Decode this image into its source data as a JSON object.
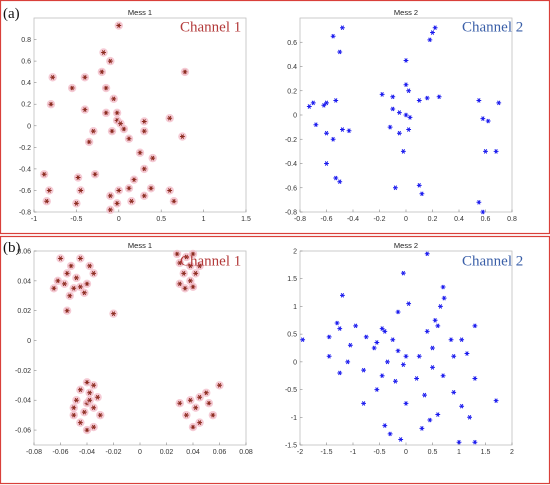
{
  "figure": {
    "row_labels": [
      "(a)",
      "(b)"
    ],
    "frame_color": "#d9403a"
  },
  "chart_data": [
    {
      "id": "a1",
      "type": "scatter",
      "title": "Mess 1",
      "channel_label": "Channel 1",
      "channel_color": "#b33a3a",
      "marker_color": "#8b2a1e",
      "halo_color": "#f2b8c6",
      "xlim": [
        -1,
        1.5
      ],
      "ylim": [
        -0.8,
        1
      ],
      "xticks": [
        -1,
        -0.5,
        0,
        0.5,
        1,
        1.5
      ],
      "xtick_labels": [
        "-1",
        "-0.5",
        "0",
        "0.5",
        "1",
        "1.5"
      ],
      "yticks": [
        -0.8,
        -0.6,
        -0.4,
        -0.2,
        0,
        0.2,
        0.4,
        0.6,
        0.8
      ],
      "ytick_labels": [
        "-0.8",
        "-0.6",
        "-0.4",
        "-0.2",
        "0",
        "0.2",
        "0.4",
        "0.6",
        "0.8"
      ],
      "points": [
        [
          0,
          0.93
        ],
        [
          -0.18,
          0.68
        ],
        [
          -0.1,
          0.6
        ],
        [
          -0.4,
          0.45
        ],
        [
          -0.2,
          0.5
        ],
        [
          0.78,
          0.5
        ],
        [
          -0.78,
          0.45
        ],
        [
          -0.55,
          0.35
        ],
        [
          -0.15,
          0.35
        ],
        [
          -0.06,
          0.25
        ],
        [
          -0.8,
          0.2
        ],
        [
          -0.4,
          0.15
        ],
        [
          -0.15,
          0.12
        ],
        [
          -0.02,
          0.05
        ],
        [
          0.02,
          0.02
        ],
        [
          0.06,
          -0.03
        ],
        [
          -0.08,
          -0.05
        ],
        [
          -0.3,
          -0.05
        ],
        [
          -0.02,
          0.12
        ],
        [
          0.6,
          0.07
        ],
        [
          0.3,
          0.04
        ],
        [
          0.3,
          -0.05
        ],
        [
          -0.35,
          -0.15
        ],
        [
          0.12,
          -0.12
        ],
        [
          0.25,
          -0.25
        ],
        [
          0.4,
          -0.3
        ],
        [
          0.75,
          -0.1
        ],
        [
          0.3,
          -0.4
        ],
        [
          -0.88,
          -0.45
        ],
        [
          -0.28,
          -0.45
        ],
        [
          -0.48,
          -0.48
        ],
        [
          0.18,
          -0.5
        ],
        [
          -0.82,
          -0.6
        ],
        [
          -0.45,
          -0.6
        ],
        [
          0.12,
          -0.58
        ],
        [
          0.38,
          -0.58
        ],
        [
          0.0,
          -0.6
        ],
        [
          0.6,
          -0.6
        ],
        [
          -0.1,
          -0.65
        ],
        [
          -0.85,
          -0.7
        ],
        [
          0.15,
          -0.7
        ],
        [
          0.65,
          -0.7
        ],
        [
          -0.5,
          -0.72
        ],
        [
          -0.1,
          -0.78
        ],
        [
          0.3,
          -0.65
        ],
        [
          -0.02,
          -0.72
        ]
      ]
    },
    {
      "id": "a2",
      "type": "scatter",
      "title": "Mess 2",
      "channel_label": "Channel 2",
      "channel_color": "#3a5fa8",
      "marker_color": "#1a1aee",
      "xlim": [
        -0.8,
        0.8
      ],
      "ylim": [
        -0.8,
        0.8
      ],
      "xticks": [
        -0.8,
        -0.6,
        -0.4,
        -0.2,
        0,
        0.2,
        0.4,
        0.6,
        0.8
      ],
      "xtick_labels": [
        "-0.8",
        "-0.6",
        "-0.4",
        "-0.2",
        "0",
        "0.2",
        "0.4",
        "0.6",
        "0.8"
      ],
      "yticks": [
        -0.8,
        -0.6,
        -0.4,
        -0.2,
        0,
        0.2,
        0.4,
        0.6
      ],
      "ytick_labels": [
        "-0.8",
        "-0.6",
        "-0.4",
        "-0.2",
        "0",
        "0.2",
        "0.4",
        "0.6"
      ],
      "points": [
        [
          -0.48,
          0.72
        ],
        [
          -0.55,
          0.65
        ],
        [
          0.22,
          0.72
        ],
        [
          0.2,
          0.68
        ],
        [
          0.18,
          0.62
        ],
        [
          -0.5,
          0.52
        ],
        [
          0.0,
          0.45
        ],
        [
          -0.7,
          0.1
        ],
        [
          -0.73,
          0.07
        ],
        [
          -0.62,
          0.08
        ],
        [
          -0.6,
          0.1
        ],
        [
          -0.53,
          0.12
        ],
        [
          -0.18,
          0.17
        ],
        [
          -0.1,
          0.15
        ],
        [
          0.0,
          0.25
        ],
        [
          0.02,
          0.2
        ],
        [
          0.1,
          0.12
        ],
        [
          0.16,
          0.14
        ],
        [
          0.25,
          0.15
        ],
        [
          0.55,
          0.12
        ],
        [
          0.7,
          0.1
        ],
        [
          -0.1,
          0.05
        ],
        [
          -0.05,
          0.02
        ],
        [
          0.0,
          0.0
        ],
        [
          0.03,
          -0.02
        ],
        [
          -0.68,
          -0.08
        ],
        [
          -0.6,
          -0.15
        ],
        [
          -0.48,
          -0.12
        ],
        [
          -0.43,
          -0.13
        ],
        [
          -0.55,
          -0.2
        ],
        [
          -0.12,
          -0.1
        ],
        [
          -0.05,
          -0.15
        ],
        [
          0.02,
          -0.12
        ],
        [
          0.58,
          -0.03
        ],
        [
          0.62,
          -0.05
        ],
        [
          -0.6,
          -0.4
        ],
        [
          -0.53,
          -0.52
        ],
        [
          -0.5,
          -0.55
        ],
        [
          -0.02,
          -0.3
        ],
        [
          0.6,
          -0.3
        ],
        [
          0.68,
          -0.3
        ],
        [
          -0.08,
          -0.6
        ],
        [
          0.1,
          -0.58
        ],
        [
          0.12,
          -0.65
        ],
        [
          0.55,
          -0.72
        ],
        [
          0.58,
          -0.8
        ]
      ]
    },
    {
      "id": "b1",
      "type": "scatter",
      "title": "Mess 1",
      "channel_label": "Channel 1",
      "channel_color": "#b33a3a",
      "marker_color": "#8b2a1e",
      "halo_color": "#f2b8c6",
      "xlim": [
        -0.08,
        0.08
      ],
      "ylim": [
        -0.07,
        0.06
      ],
      "xticks": [
        -0.08,
        -0.06,
        -0.04,
        -0.02,
        0,
        0.02,
        0.04,
        0.06,
        0.08
      ],
      "xtick_labels": [
        "-0.08",
        "-0.06",
        "-0.04",
        "-0.02",
        "0",
        "0.02",
        "0.04",
        "0.06",
        "0.08"
      ],
      "yticks": [
        -0.06,
        -0.04,
        -0.02,
        0,
        0.02,
        0.04,
        0.06
      ],
      "ytick_labels": [
        "-0.06",
        "-0.04",
        "-0.02",
        "0",
        "0.02",
        "0.04",
        "0.06"
      ],
      "points": [
        [
          -0.06,
          0.055
        ],
        [
          -0.045,
          0.055
        ],
        [
          -0.052,
          0.05
        ],
        [
          -0.038,
          0.05
        ],
        [
          -0.055,
          0.045
        ],
        [
          -0.048,
          0.042
        ],
        [
          -0.035,
          0.045
        ],
        [
          -0.062,
          0.04
        ],
        [
          -0.057,
          0.038
        ],
        [
          -0.05,
          0.035
        ],
        [
          -0.045,
          0.036
        ],
        [
          -0.04,
          0.038
        ],
        [
          -0.065,
          0.035
        ],
        [
          -0.042,
          0.032
        ],
        [
          -0.053,
          0.03
        ],
        [
          -0.055,
          0.02
        ],
        [
          -0.02,
          0.018
        ],
        [
          0.028,
          0.058
        ],
        [
          0.035,
          0.056
        ],
        [
          0.04,
          0.058
        ],
        [
          0.03,
          0.052
        ],
        [
          0.038,
          0.05
        ],
        [
          0.045,
          0.05
        ],
        [
          0.033,
          0.045
        ],
        [
          0.042,
          0.045
        ],
        [
          0.038,
          0.04
        ],
        [
          0.034,
          0.035
        ],
        [
          0.04,
          0.036
        ],
        [
          0.03,
          0.038
        ],
        [
          -0.04,
          -0.028
        ],
        [
          -0.035,
          -0.03
        ],
        [
          -0.045,
          -0.033
        ],
        [
          -0.038,
          -0.035
        ],
        [
          -0.032,
          -0.038
        ],
        [
          -0.048,
          -0.04
        ],
        [
          -0.04,
          -0.042
        ],
        [
          -0.035,
          -0.045
        ],
        [
          -0.042,
          -0.048
        ],
        [
          -0.05,
          -0.05
        ],
        [
          -0.03,
          -0.05
        ],
        [
          -0.045,
          -0.055
        ],
        [
          -0.035,
          -0.058
        ],
        [
          -0.04,
          -0.06
        ],
        [
          -0.05,
          -0.045
        ],
        [
          -0.038,
          -0.04
        ],
        [
          0.06,
          -0.03
        ],
        [
          0.05,
          -0.035
        ],
        [
          0.045,
          -0.038
        ],
        [
          0.038,
          -0.04
        ],
        [
          0.03,
          -0.042
        ],
        [
          0.052,
          -0.042
        ],
        [
          0.042,
          -0.045
        ],
        [
          0.035,
          -0.05
        ],
        [
          0.055,
          -0.05
        ],
        [
          0.045,
          -0.055
        ],
        [
          0.04,
          -0.058
        ]
      ]
    },
    {
      "id": "b2",
      "type": "scatter",
      "title": "Mess 2",
      "channel_label": "Channel 2",
      "channel_color": "#3a5fa8",
      "marker_color": "#1a1aee",
      "xlim": [
        -2,
        2
      ],
      "ylim": [
        -1.5,
        2
      ],
      "xticks": [
        -2,
        -1.5,
        -1,
        -0.5,
        0,
        0.5,
        1,
        1.5,
        2
      ],
      "xtick_labels": [
        "-2",
        "-1.5",
        "-1",
        "-0.5",
        "0",
        "0.5",
        "1",
        "1.5",
        "2"
      ],
      "yticks": [
        -1.5,
        -1,
        -0.5,
        0,
        0.5,
        1,
        1.5,
        2
      ],
      "ytick_labels": [
        "-1.5",
        "-1",
        "-0.5",
        "0",
        "0.5",
        "1",
        "1.5",
        "2"
      ],
      "points": [
        [
          0.4,
          1.95
        ],
        [
          -0.05,
          1.6
        ],
        [
          0.7,
          1.35
        ],
        [
          0.72,
          1.15
        ],
        [
          -1.2,
          1.2
        ],
        [
          0.05,
          1.05
        ],
        [
          0.65,
          1.0
        ],
        [
          -0.15,
          0.9
        ],
        [
          -1.3,
          0.7
        ],
        [
          -0.95,
          0.65
        ],
        [
          -1.25,
          0.6
        ],
        [
          -0.45,
          0.6
        ],
        [
          -0.4,
          0.55
        ],
        [
          0.55,
          0.75
        ],
        [
          0.6,
          0.65
        ],
        [
          0.4,
          0.55
        ],
        [
          1.3,
          0.65
        ],
        [
          -1.45,
          0.45
        ],
        [
          -0.75,
          0.45
        ],
        [
          -0.25,
          0.4
        ],
        [
          -0.55,
          0.35
        ],
        [
          -0.6,
          0.25
        ],
        [
          0.85,
          0.4
        ],
        [
          1.05,
          0.4
        ],
        [
          -1.95,
          0.4
        ],
        [
          -1.05,
          0.3
        ],
        [
          0.5,
          0.25
        ],
        [
          1.15,
          0.15
        ],
        [
          -1.45,
          0.1
        ],
        [
          -0.15,
          0.2
        ],
        [
          0.0,
          0.1
        ],
        [
          0.25,
          0.1
        ],
        [
          0.9,
          0.1
        ],
        [
          -1.1,
          0.0
        ],
        [
          -0.35,
          0.0
        ],
        [
          -0.05,
          -0.05
        ],
        [
          0.5,
          -0.1
        ],
        [
          -1.25,
          -0.2
        ],
        [
          -0.8,
          -0.15
        ],
        [
          -0.45,
          -0.25
        ],
        [
          0.7,
          -0.25
        ],
        [
          0.2,
          -0.3
        ],
        [
          -0.2,
          -0.35
        ],
        [
          1.3,
          -0.3
        ],
        [
          -0.55,
          -0.5
        ],
        [
          0.35,
          -0.6
        ],
        [
          0.9,
          -0.55
        ],
        [
          -0.8,
          -0.75
        ],
        [
          0.0,
          -0.75
        ],
        [
          1.05,
          -0.8
        ],
        [
          0.6,
          -0.95
        ],
        [
          0.45,
          -1.05
        ],
        [
          1.2,
          -1.0
        ],
        [
          -0.4,
          -1.15
        ],
        [
          0.3,
          -1.2
        ],
        [
          -0.3,
          -1.3
        ],
        [
          1.3,
          -1.45
        ],
        [
          1.7,
          -0.7
        ],
        [
          -0.1,
          -1.4
        ],
        [
          1.0,
          -1.45
        ]
      ]
    }
  ]
}
